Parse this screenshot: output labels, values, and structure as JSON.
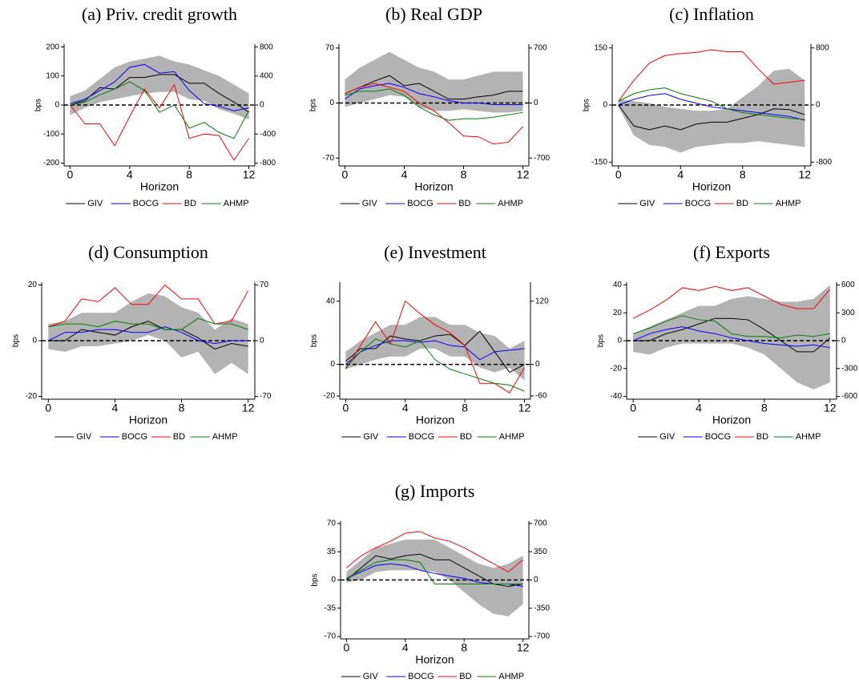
{
  "chart_data": [
    {
      "type": "line",
      "title": "(a) Priv. credit growth",
      "xlabel": "Horizon",
      "ylabel": "bps",
      "x": [
        0,
        1,
        2,
        3,
        4,
        5,
        6,
        7,
        8,
        9,
        10,
        11,
        12
      ],
      "xlim": [
        -0.4,
        12.4
      ],
      "xticks": [
        0,
        4,
        8,
        12
      ],
      "ylim": [
        -210,
        210
      ],
      "yticks": [
        -200,
        -100,
        0,
        100,
        200
      ],
      "y2lim": [
        -840,
        840
      ],
      "y2ticks": [
        -800,
        -400,
        0,
        400,
        800
      ],
      "band": {
        "color": "#b3b3b3",
        "lower": [
          -35,
          -10,
          10,
          20,
          30,
          40,
          45,
          45,
          20,
          15,
          -15,
          -30,
          -50
        ],
        "upper": [
          30,
          50,
          90,
          130,
          150,
          160,
          170,
          150,
          140,
          120,
          100,
          70,
          40
        ]
      },
      "series": [
        {
          "name": "GIV",
          "color": "#000000",
          "values": [
            0,
            15,
            60,
            55,
            95,
            95,
            105,
            105,
            75,
            75,
            40,
            10,
            -25
          ]
        },
        {
          "name": "BOCG",
          "color": "#0000ff",
          "values": [
            5,
            20,
            50,
            80,
            130,
            140,
            110,
            115,
            50,
            5,
            -5,
            -20,
            -10
          ]
        },
        {
          "name": "BD",
          "color": "#ff0000",
          "axis": "y2",
          "values": [
            0,
            -260,
            -260,
            -560,
            -160,
            220,
            -40,
            280,
            -460,
            -400,
            -420,
            -760,
            -460
          ]
        },
        {
          "name": "AHMP",
          "color": "#008000",
          "values": [
            0,
            10,
            35,
            55,
            80,
            50,
            -25,
            0,
            -80,
            -60,
            -95,
            -115,
            -20
          ]
        }
      ]
    },
    {
      "type": "line",
      "title": "(b) Real GDP",
      "xlabel": "Horizon",
      "ylabel": "bps",
      "x": [
        0,
        1,
        2,
        3,
        4,
        5,
        6,
        7,
        8,
        9,
        10,
        11,
        12
      ],
      "xlim": [
        -0.4,
        12.4
      ],
      "xticks": [
        0,
        4,
        8,
        12
      ],
      "ylim": [
        -80,
        75
      ],
      "yticks": [
        -70,
        0,
        70
      ],
      "y2lim": [
        -800,
        750
      ],
      "y2ticks": [
        -700,
        0,
        700
      ],
      "band": {
        "color": "#b3b3b3",
        "lower": [
          -5,
          0,
          5,
          10,
          8,
          -5,
          -10,
          -10,
          -8,
          -10,
          -12,
          -12,
          -10
        ],
        "upper": [
          30,
          45,
          55,
          65,
          55,
          45,
          40,
          30,
          30,
          35,
          40,
          40,
          40
        ]
      },
      "series": [
        {
          "name": "GIV",
          "color": "#000000",
          "values": [
            12,
            20,
            28,
            35,
            22,
            25,
            15,
            5,
            5,
            8,
            10,
            15,
            15
          ]
        },
        {
          "name": "BOCG",
          "color": "#0000ff",
          "values": [
            5,
            18,
            22,
            25,
            20,
            12,
            8,
            3,
            0,
            0,
            -2,
            -2,
            -2
          ]
        },
        {
          "name": "BD",
          "color": "#ff0000",
          "axis": "y2",
          "values": [
            120,
            200,
            250,
            200,
            150,
            0,
            -100,
            -250,
            -420,
            -430,
            -520,
            -500,
            -300
          ]
        },
        {
          "name": "AHMP",
          "color": "#008000",
          "values": [
            10,
            15,
            15,
            18,
            10,
            -5,
            -15,
            -22,
            -20,
            -20,
            -18,
            -15,
            -12
          ]
        }
      ]
    },
    {
      "type": "line",
      "title": "(c) Inflation",
      "xlabel": "Horizon",
      "ylabel": "bps",
      "x": [
        0,
        1,
        2,
        3,
        4,
        5,
        6,
        7,
        8,
        9,
        10,
        11,
        12
      ],
      "xlim": [
        -0.4,
        12.4
      ],
      "xticks": [
        0,
        4,
        8,
        12
      ],
      "ylim": [
        -160,
        160
      ],
      "yticks": [
        -150,
        0,
        150
      ],
      "y2lim": [
        -853,
        853
      ],
      "y2ticks": [
        -800,
        0,
        800
      ],
      "band": {
        "color": "#b3b3b3",
        "lower": [
          -5,
          -80,
          -105,
          -110,
          -125,
          -110,
          -105,
          -100,
          -100,
          -95,
          -100,
          -105,
          -110
        ],
        "upper": [
          15,
          10,
          5,
          -5,
          -10,
          -15,
          -15,
          -10,
          20,
          50,
          90,
          95,
          65
        ]
      },
      "series": [
        {
          "name": "GIV",
          "color": "#000000",
          "values": [
            0,
            -55,
            -65,
            -55,
            -65,
            -50,
            -45,
            -45,
            -35,
            -25,
            -10,
            -12,
            -25
          ]
        },
        {
          "name": "BOCG",
          "color": "#0000ff",
          "values": [
            0,
            15,
            25,
            30,
            15,
            5,
            -5,
            -10,
            -15,
            -20,
            -25,
            -30,
            -40
          ]
        },
        {
          "name": "BD",
          "color": "#ff0000",
          "axis": "y2",
          "values": [
            53,
            347,
            587,
            693,
            720,
            736,
            773,
            747,
            747,
            507,
            293,
            320,
            347
          ]
        },
        {
          "name": "AHMP",
          "color": "#008000",
          "values": [
            10,
            30,
            40,
            45,
            30,
            20,
            10,
            -10,
            -20,
            -25,
            -30,
            -35,
            -38
          ]
        }
      ]
    },
    {
      "type": "line",
      "title": "(d) Consumption",
      "xlabel": "Horizon",
      "ylabel": "bps",
      "x": [
        0,
        1,
        2,
        3,
        4,
        5,
        6,
        7,
        8,
        9,
        10,
        11,
        12
      ],
      "xlim": [
        -0.4,
        12.4
      ],
      "xticks": [
        0,
        4,
        8,
        12
      ],
      "ylim": [
        -21,
        21
      ],
      "yticks": [
        -20,
        0,
        20
      ],
      "y2lim": [
        -73.5,
        73.5
      ],
      "y2ticks": [
        -70,
        0,
        70
      ],
      "band": {
        "color": "#b3b3b3",
        "lower": [
          -3,
          -4,
          -2,
          -2,
          -1,
          0,
          2,
          0,
          -6,
          -4,
          -12,
          -8,
          -12
        ],
        "upper": [
          6,
          7,
          10,
          10,
          10,
          14,
          17,
          16,
          12,
          10,
          4,
          8,
          6
        ]
      },
      "series": [
        {
          "name": "GIV",
          "color": "#000000",
          "values": [
            0,
            0,
            4,
            3,
            2,
            5,
            7,
            4,
            4,
            1,
            -3,
            -1,
            -2
          ]
        },
        {
          "name": "BOCG",
          "color": "#0000ff",
          "values": [
            0,
            3,
            3,
            4,
            4,
            3,
            3,
            5,
            3,
            0,
            -1,
            0,
            0
          ]
        },
        {
          "name": "BD",
          "color": "#ff0000",
          "axis": "y2",
          "values": [
            17.5,
            24.5,
            52.5,
            49,
            66.5,
            45.5,
            45.5,
            70,
            52.5,
            52.5,
            21,
            24.5,
            63
          ]
        },
        {
          "name": "AHMP",
          "color": "#008000",
          "values": [
            5,
            6,
            6,
            5,
            7,
            6,
            6,
            4,
            4,
            8,
            6,
            6,
            4
          ]
        }
      ]
    },
    {
      "type": "line",
      "title": "(e) Investment",
      "xlabel": "Horizon",
      "ylabel": "bps",
      "x": [
        0,
        1,
        2,
        3,
        4,
        5,
        6,
        7,
        8,
        9,
        10,
        11,
        12
      ],
      "xlim": [
        -0.4,
        12.4
      ],
      "xticks": [
        0,
        4,
        8,
        12
      ],
      "ylim": [
        -22,
        52
      ],
      "yticks": [
        -20,
        0,
        40
      ],
      "y2lim": [
        -66,
        156
      ],
      "y2ticks": [
        -60,
        0,
        120
      ],
      "band": {
        "color": "#b3b3b3",
        "lower": [
          -3,
          0,
          3,
          5,
          5,
          10,
          10,
          5,
          5,
          -2,
          -5,
          -2,
          -10
        ],
        "upper": [
          8,
          15,
          20,
          25,
          25,
          30,
          30,
          25,
          25,
          20,
          18,
          10,
          15
        ]
      },
      "series": [
        {
          "name": "GIV",
          "color": "#000000",
          "values": [
            2,
            10,
            10,
            18,
            16,
            15,
            18,
            19,
            12,
            21,
            8,
            -5,
            0
          ]
        },
        {
          "name": "BOCG",
          "color": "#0000ff",
          "values": [
            0,
            8,
            12,
            15,
            15,
            14,
            15,
            12,
            11,
            3,
            8,
            9,
            10
          ]
        },
        {
          "name": "BD",
          "color": "#ff0000",
          "axis": "y2",
          "values": [
            -9,
            36,
            81,
            39,
            120,
            96,
            75,
            60,
            36,
            -36,
            -36,
            -54,
            -6
          ]
        },
        {
          "name": "AHMP",
          "color": "#008000",
          "values": [
            -2,
            8,
            16,
            13,
            11,
            15,
            3,
            -3,
            -6,
            -9,
            -12,
            -13,
            -17
          ]
        }
      ]
    },
    {
      "type": "line",
      "title": "(f) Exports",
      "xlabel": "Horizon",
      "ylabel": "bps",
      "x": [
        0,
        1,
        2,
        3,
        4,
        5,
        6,
        7,
        8,
        9,
        10,
        11,
        12
      ],
      "xlim": [
        -0.4,
        12.4
      ],
      "xticks": [
        0,
        4,
        8,
        12
      ],
      "ylim": [
        -42,
        42
      ],
      "yticks": [
        -40,
        -20,
        0,
        20,
        40
      ],
      "y2lim": [
        -630,
        630
      ],
      "y2ticks": [
        -600,
        -300,
        0,
        300,
        600
      ],
      "band": {
        "color": "#b3b3b3",
        "lower": [
          -8,
          -10,
          -5,
          -2,
          -2,
          -2,
          -2,
          -5,
          -10,
          -20,
          -30,
          -35,
          -30
        ],
        "upper": [
          5,
          10,
          15,
          20,
          25,
          25,
          30,
          32,
          30,
          28,
          28,
          30,
          40
        ]
      },
      "series": [
        {
          "name": "GIV",
          "color": "#000000",
          "values": [
            0,
            0,
            5,
            8,
            12,
            16,
            16,
            15,
            8,
            0,
            -8,
            -8,
            2
          ]
        },
        {
          "name": "BOCG",
          "color": "#0000ff",
          "values": [
            0,
            5,
            8,
            10,
            7,
            5,
            2,
            0,
            -2,
            -3,
            -4,
            -3,
            -5
          ]
        },
        {
          "name": "BD",
          "color": "#ff0000",
          "axis": "y2",
          "values": [
            240,
            330,
            435,
            570,
            540,
            585,
            540,
            570,
            480,
            390,
            345,
            345,
            555
          ]
        },
        {
          "name": "AHMP",
          "color": "#008000",
          "values": [
            5,
            9,
            14,
            18,
            15,
            14,
            5,
            3,
            3,
            2,
            4,
            3,
            5
          ]
        }
      ]
    },
    {
      "type": "line",
      "title": "(g) Imports",
      "xlabel": "Horizon",
      "ylabel": "bps",
      "x": [
        0,
        1,
        2,
        3,
        4,
        5,
        6,
        7,
        8,
        9,
        10,
        11,
        12
      ],
      "xlim": [
        -0.4,
        12.4
      ],
      "xticks": [
        0,
        4,
        8,
        12
      ],
      "ylim": [
        -73,
        73
      ],
      "yticks": [
        -70,
        -35,
        0,
        35,
        70
      ],
      "y2lim": [
        -730,
        730
      ],
      "y2ticks": [
        -700,
        -350,
        0,
        350,
        700
      ],
      "band": {
        "color": "#b3b3b3",
        "lower": [
          -3,
          0,
          10,
          12,
          12,
          12,
          10,
          0,
          -15,
          -30,
          -42,
          -45,
          -30
        ],
        "upper": [
          10,
          25,
          40,
          45,
          50,
          50,
          50,
          40,
          30,
          20,
          15,
          20,
          30
        ]
      },
      "series": [
        {
          "name": "GIV",
          "color": "#000000",
          "values": [
            0,
            15,
            30,
            26,
            30,
            32,
            25,
            25,
            15,
            5,
            -5,
            -8,
            -5
          ]
        },
        {
          "name": "BOCG",
          "color": "#0000ff",
          "values": [
            2,
            10,
            18,
            20,
            18,
            12,
            8,
            5,
            2,
            -3,
            -5,
            -5,
            -8
          ]
        },
        {
          "name": "BD",
          "color": "#ff0000",
          "axis": "y2",
          "values": [
            150,
            300,
            400,
            480,
            580,
            600,
            520,
            480,
            400,
            300,
            200,
            100,
            250
          ]
        },
        {
          "name": "AHMP",
          "color": "#008000",
          "values": [
            2,
            12,
            22,
            25,
            25,
            22,
            -5,
            -5,
            -5,
            -5,
            -5,
            -5,
            -5
          ]
        }
      ]
    }
  ]
}
